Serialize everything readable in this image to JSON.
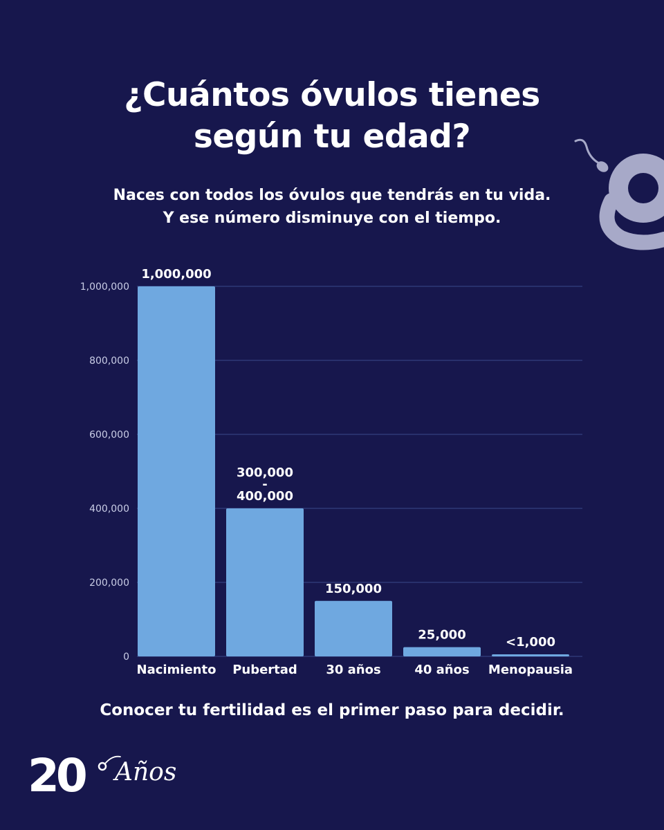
{
  "header": {
    "title_line1": "¿Cuántos óvulos tienes",
    "title_line2": "según tu edad?",
    "subtitle_line1": "Naces con todos los óvulos que tendrás en tu vida.",
    "subtitle_line2": "Y ese número disminuye con el tiempo."
  },
  "chart_data": {
    "type": "bar",
    "categories": [
      "Nacimiento",
      "Pubertad",
      "30 años",
      "40 años",
      "Menopausia"
    ],
    "values": [
      1000000,
      400000,
      150000,
      25000,
      1000
    ],
    "data_labels": [
      [
        "1,000,000"
      ],
      [
        "300,000",
        "-",
        "400,000"
      ],
      [
        "150,000"
      ],
      [
        "25,000"
      ],
      [
        "<1,000"
      ]
    ],
    "yticks": [
      0,
      200000,
      400000,
      600000,
      800000,
      1000000
    ],
    "ytick_labels": [
      "0",
      "200,000",
      "400,000",
      "600,000",
      "800,000",
      "1,000,000"
    ],
    "ylim": [
      0,
      1000000
    ],
    "grid": true,
    "colors": {
      "bar": "#6fa8e0",
      "grid": "#3a4a8c",
      "axis_text": "#c9cde6",
      "label": "#ffffff"
    }
  },
  "footer": {
    "message": "Conocer tu fertilidad es el primer paso para decidir.",
    "anniversary_number": "20",
    "anniversary_word": "Años"
  },
  "icons": {
    "brand": "brand-g-sperm-logo",
    "anniversary": "anniversary-20-logo"
  },
  "theme": {
    "background": "#17174d",
    "brand_gray": "#a7a9c8"
  }
}
